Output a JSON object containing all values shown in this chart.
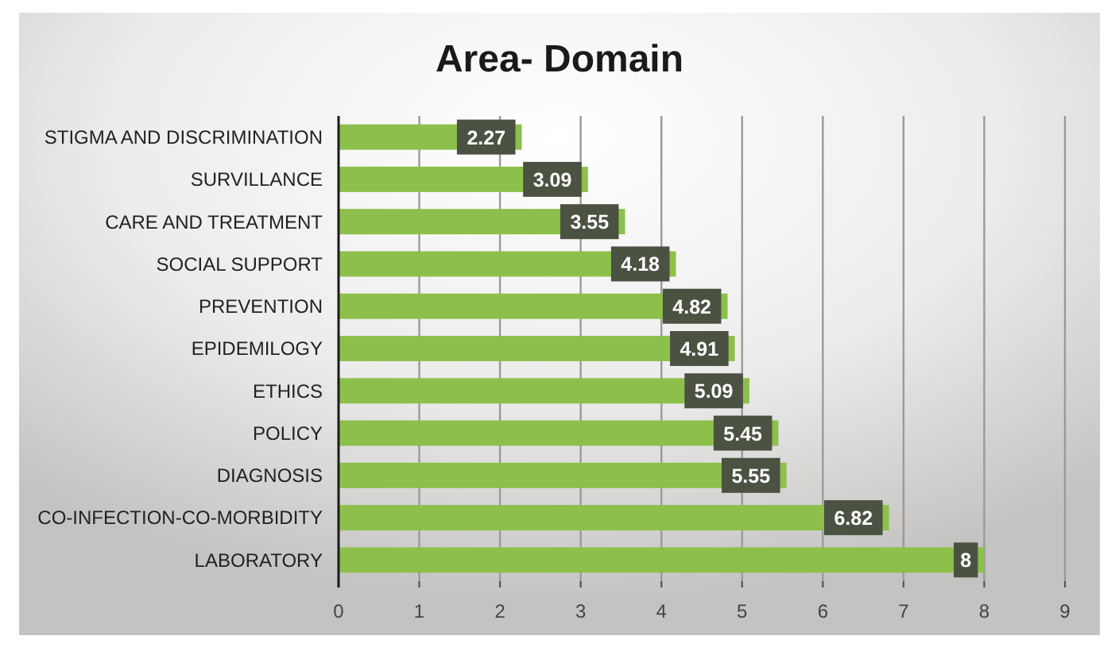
{
  "chart_data": {
    "type": "bar",
    "orientation": "horizontal",
    "title": "Area- Domain",
    "categories": [
      "STIGMA AND DISCRIMINATION",
      "SURVILLANCE",
      "CARE AND TREATMENT",
      "SOCIAL SUPPORT",
      "PREVENTION",
      "EPIDEMILOGY",
      "ETHICS",
      "POLICY",
      "DIAGNOSIS",
      "CO-INFECTION-CO-MORBIDITY",
      "LABORATORY"
    ],
    "values": [
      2.27,
      3.09,
      3.55,
      4.18,
      4.82,
      4.91,
      5.09,
      5.45,
      5.55,
      6.82,
      8
    ],
    "color": "#8cc04b",
    "xlim": [
      0,
      9
    ],
    "xticks": [
      0,
      1,
      2,
      3,
      4,
      5,
      6,
      7,
      8,
      9
    ],
    "grid": "x",
    "data_labels": true
  }
}
